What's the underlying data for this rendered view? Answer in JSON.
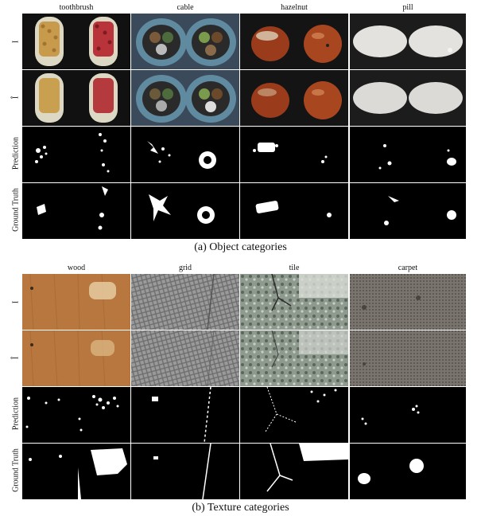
{
  "figure_a": {
    "columns": [
      "toothbrush",
      "cable",
      "hazelnut",
      "pill"
    ],
    "rows": [
      "I",
      "Î",
      "Prediction",
      "Ground Truth"
    ],
    "caption": "(a) Object categories"
  },
  "figure_b": {
    "columns": [
      "wood",
      "grid",
      "tile",
      "carpet"
    ],
    "rows": [
      "I",
      "Î",
      "Prediction",
      "Ground Truth"
    ],
    "caption": "(b) Texture categories"
  }
}
